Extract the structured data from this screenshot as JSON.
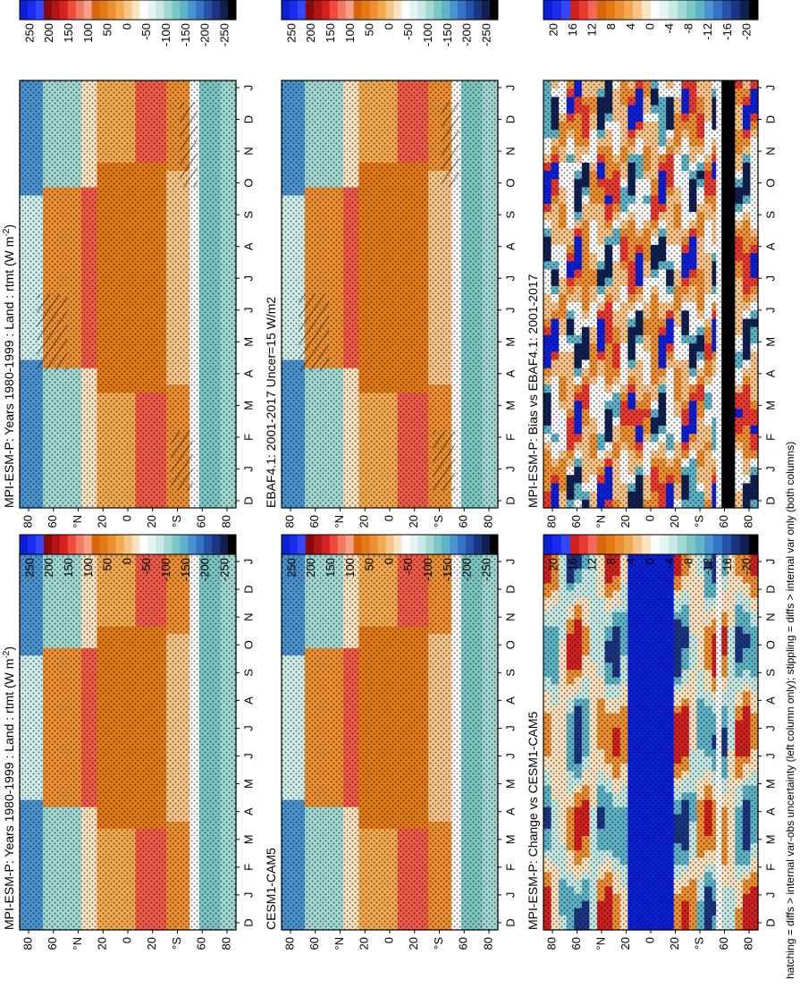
{
  "footnote": "hatching = diffs > internal var-obs uncertainty (left column only); stippling = diffs > internal var only (both columns)",
  "colorbar_abs": {
    "labels": [
      "250",
      "200",
      "150",
      "100",
      "50",
      "0",
      "-50",
      "-100",
      "-150",
      "-200",
      "-250"
    ],
    "colors": [
      "#0c1fd8",
      "#1a2cf0",
      "#3446fa",
      "#8a0a0a",
      "#b21515",
      "#d92020",
      "#f04a3c",
      "#f07a62",
      "#f6a088",
      "#d9650b",
      "#e37a14",
      "#ec9032",
      "#f2a94f",
      "#f7c58a",
      "#fbe3c0",
      "#ffffff",
      "#e3f5f2",
      "#c6e9e4",
      "#a2d8d3",
      "#7cc6c4",
      "#5fb3c7",
      "#4a93cf",
      "#3573c4",
      "#2552a8",
      "#1c3580",
      "#102050",
      "#000000"
    ]
  },
  "colorbar_diff": {
    "labels": [
      "20",
      "16",
      "12",
      "8",
      "4",
      "0",
      "-4",
      "-8",
      "-12",
      "-16",
      "-20"
    ],
    "colors": [
      "#0c1fd8",
      "#1a2cf0",
      "#3446fa",
      "#d02020",
      "#e83a30",
      "#f26a55",
      "#d9650b",
      "#e37a14",
      "#ec9032",
      "#f2a94f",
      "#f7c58a",
      "#fbe3c0",
      "#ffffff",
      "#e3f5f2",
      "#c6e9e4",
      "#a2d8d3",
      "#7cc6c4",
      "#5fb3c7",
      "#4a93cf",
      "#3573c4",
      "#2552a8",
      "#1c3580",
      "#102050",
      "#000000"
    ]
  },
  "chart_data": [
    {
      "type": "heatmap",
      "title": "MPI-ESM-P: Years 1980-1999 : Land : rtmt (W m",
      "title_sup": "-2",
      "title_end": ")",
      "x_ticks": [
        "D",
        "J",
        "F",
        "M",
        "A",
        "M",
        "J",
        "J",
        "A",
        "S",
        "O",
        "N",
        "D",
        "J"
      ],
      "y_ticks": [
        "80",
        "60",
        "°N",
        "20",
        "0",
        "20",
        "°S",
        "60",
        "80"
      ],
      "field": "abs",
      "hatching": true,
      "stippling": true,
      "zrange": [
        -250,
        250
      ]
    },
    {
      "type": "heatmap",
      "title": "MPI-ESM-P: Years 1980-1999 : Land : rtmt (W m",
      "title_sup": "-2",
      "title_end": ")",
      "x_ticks": [
        "D",
        "J",
        "F",
        "M",
        "A",
        "M",
        "J",
        "J",
        "A",
        "S",
        "O",
        "N",
        "D",
        "J"
      ],
      "y_ticks": [
        "80",
        "60",
        "°N",
        "20",
        "0",
        "20",
        "°S",
        "60",
        "80"
      ],
      "field": "abs",
      "hatching": false,
      "stippling": true,
      "zrange": [
        -250,
        250
      ]
    },
    {
      "type": "heatmap",
      "title": "EBAF4.1: 2001-2017 Uncer=15 W/m2",
      "title_sup": "",
      "title_end": "",
      "x_ticks": [
        "D",
        "J",
        "F",
        "M",
        "A",
        "M",
        "J",
        "J",
        "A",
        "S",
        "O",
        "N",
        "D",
        "J"
      ],
      "y_ticks": [
        "80",
        "60",
        "°N",
        "20",
        "0",
        "20",
        "°S",
        "60",
        "80"
      ],
      "field": "abs",
      "hatching": true,
      "stippling": true,
      "zrange": [
        -250,
        250
      ]
    },
    {
      "type": "heatmap",
      "title": "CESM1-CAM5",
      "title_sup": "",
      "title_end": "",
      "x_ticks": [
        "D",
        "J",
        "F",
        "M",
        "A",
        "M",
        "J",
        "J",
        "A",
        "S",
        "O",
        "N",
        "D",
        "J"
      ],
      "y_ticks": [
        "80",
        "60",
        "°N",
        "20",
        "0",
        "20",
        "°S",
        "60",
        "80"
      ],
      "field": "abs",
      "hatching": false,
      "stippling": true,
      "zrange": [
        -250,
        250
      ]
    },
    {
      "type": "heatmap",
      "title": "MPI-ESM-P: Bias vs EBAF4.1: 2001-2017",
      "title_sup": "",
      "title_end": "",
      "x_ticks": [
        "D",
        "J",
        "F",
        "M",
        "A",
        "M",
        "J",
        "J",
        "A",
        "S",
        "O",
        "N",
        "D",
        "J"
      ],
      "y_ticks": [
        "80",
        "60",
        "°N",
        "20",
        "0",
        "20",
        "°S",
        "60",
        "80"
      ],
      "field": "bias",
      "hatching": false,
      "stippling": true,
      "zrange": [
        -20,
        20
      ]
    },
    {
      "type": "heatmap",
      "title": "MPI-ESM-P: Change vs CESM1-CAM5",
      "title_sup": "",
      "title_end": "",
      "x_ticks": [
        "D",
        "J",
        "F",
        "M",
        "A",
        "M",
        "J",
        "J",
        "A",
        "S",
        "O",
        "N",
        "D",
        "J"
      ],
      "y_ticks": [
        "80",
        "60",
        "°N",
        "20",
        "0",
        "20",
        "°S",
        "60",
        "80"
      ],
      "field": "change",
      "hatching": false,
      "stippling": true,
      "zrange": [
        -20,
        20
      ]
    }
  ]
}
